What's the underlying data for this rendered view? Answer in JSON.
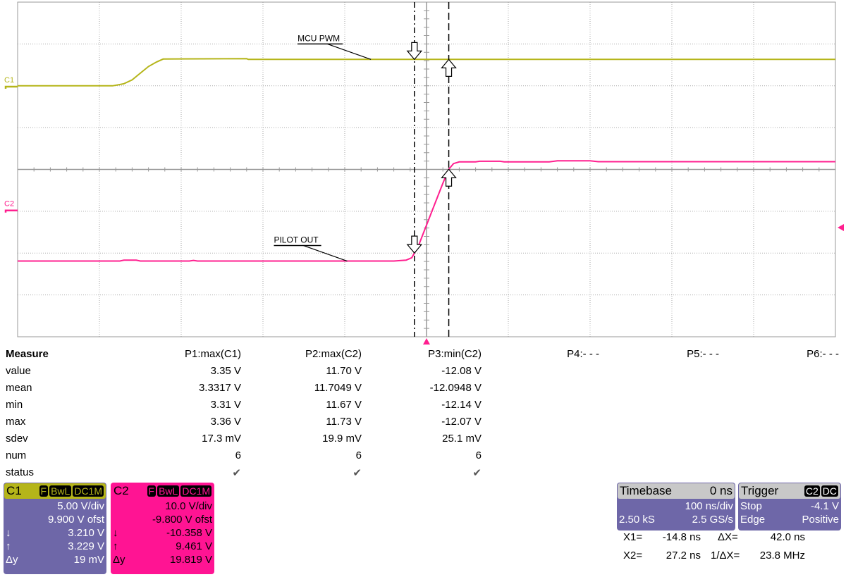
{
  "chart_data": {
    "type": "line",
    "title": "",
    "x_unit": "ns",
    "xlim": [
      -500,
      500
    ],
    "x_divisions": 10,
    "y_divisions": 8,
    "grid": true,
    "series": [
      {
        "name": "C1",
        "color": "#b5b51a",
        "volts_per_div": 5.0,
        "offset": 9.9,
        "points": [
          [
            -500,
            0.1
          ],
          [
            -384,
            0.1
          ],
          [
            -378,
            0.2
          ],
          [
            -370,
            0.35
          ],
          [
            -360,
            0.8
          ],
          [
            -350,
            1.6
          ],
          [
            -340,
            2.4
          ],
          [
            -330,
            2.95
          ],
          [
            -322,
            3.3
          ],
          [
            -220,
            3.35
          ],
          [
            -218,
            3.25
          ],
          [
            500,
            3.25
          ]
        ]
      },
      {
        "name": "C2",
        "color": "#ff1f8f",
        "volts_per_div": 10.0,
        "offset": -9.8,
        "points": [
          [
            -500,
            -12.1
          ],
          [
            -375,
            -12.1
          ],
          [
            -370,
            -11.9
          ],
          [
            -355,
            -11.9
          ],
          [
            -350,
            -12.1
          ],
          [
            -290,
            -12.1
          ],
          [
            -285,
            -11.95
          ],
          [
            -280,
            -12.1
          ],
          [
            -40,
            -12.1
          ],
          [
            -25,
            -11.9
          ],
          [
            -18,
            -11.3
          ],
          [
            -10,
            -8.5
          ],
          [
            0,
            -3.5
          ],
          [
            10,
            1.5
          ],
          [
            20,
            6.5
          ],
          [
            27,
            9.8
          ],
          [
            33,
            11.2
          ],
          [
            40,
            11.6
          ],
          [
            60,
            11.6
          ],
          [
            65,
            11.75
          ],
          [
            90,
            11.75
          ],
          [
            95,
            11.6
          ],
          [
            150,
            11.6
          ],
          [
            160,
            11.85
          ],
          [
            200,
            11.85
          ],
          [
            210,
            11.65
          ],
          [
            500,
            11.65
          ]
        ]
      }
    ],
    "annotations": [
      {
        "text": "MCU PWM",
        "channel": "C1",
        "t": -68
      },
      {
        "text": "PILOT OUT",
        "channel": "C2",
        "t": -97
      }
    ],
    "trigger_position_ns": 0,
    "trigger_level_v": -4.1
  },
  "measure": {
    "title": "Measure",
    "headers": [
      "P1:max(C1)",
      "P2:max(C2)",
      "P3:min(C2)",
      "P4:- - -",
      "P5:- - -",
      "P6:- - -"
    ],
    "rows": [
      {
        "label": "value",
        "cells": [
          "3.35 V",
          "11.70 V",
          "-12.08 V"
        ]
      },
      {
        "label": "mean",
        "cells": [
          "3.3317 V",
          "11.7049 V",
          "-12.0948 V"
        ]
      },
      {
        "label": "min",
        "cells": [
          "3.31 V",
          "11.67 V",
          "-12.14 V"
        ]
      },
      {
        "label": "max",
        "cells": [
          "3.36 V",
          "11.73 V",
          "-12.07 V"
        ]
      },
      {
        "label": "sdev",
        "cells": [
          "17.3 mV",
          "19.9 mV",
          "25.1 mV"
        ]
      },
      {
        "label": "num",
        "cells": [
          "6",
          "6",
          "6"
        ]
      },
      {
        "label": "status",
        "cells": [
          "✔",
          "✔",
          "✔"
        ]
      }
    ]
  },
  "channels": [
    {
      "name": "C1",
      "tags": [
        "F",
        "BwL",
        "DC1M"
      ],
      "vdiv": "5.00 V/div",
      "ofst": "9.900 V ofst",
      "down_sym": "↓",
      "down": "3.210 V",
      "up_sym": "↑",
      "up": "3.229 V",
      "dy_sym": "Δy",
      "dy": "19 mV",
      "color": "#b5b51a",
      "bg": "#6e67a8"
    },
    {
      "name": "C2",
      "tags": [
        "F",
        "BwL",
        "DC1M"
      ],
      "vdiv": "10.0 V/div",
      "ofst": "-9.800 V ofst",
      "down_sym": "↓",
      "down": "-10.358 V",
      "up_sym": "↑",
      "up": "9.461 V",
      "dy_sym": "Δy",
      "dy": "19.819 V",
      "color": "#ff1493",
      "bg": "#ff1493"
    }
  ],
  "timebase": {
    "label": "Timebase",
    "delay": "0 ns",
    "tdiv": "100 ns/div",
    "samples": "2.50 kS",
    "rate": "2.5 GS/s"
  },
  "trigger": {
    "label": "Trigger",
    "tags": [
      "C2",
      "DC"
    ],
    "mode": "Stop",
    "level": "-4.1 V",
    "type": "Edge",
    "slope": "Positive"
  },
  "cursors": {
    "x1_label": "X1=",
    "x1": "-14.8 ns",
    "x2_label": "X2=",
    "x2": "27.2 ns",
    "dx_label": "ΔX=",
    "dx": "42.0 ns",
    "inv_label": "1/ΔX=",
    "inv": "23.8 MHz",
    "x1_ns": -14.8,
    "x2_ns": 27.2
  }
}
